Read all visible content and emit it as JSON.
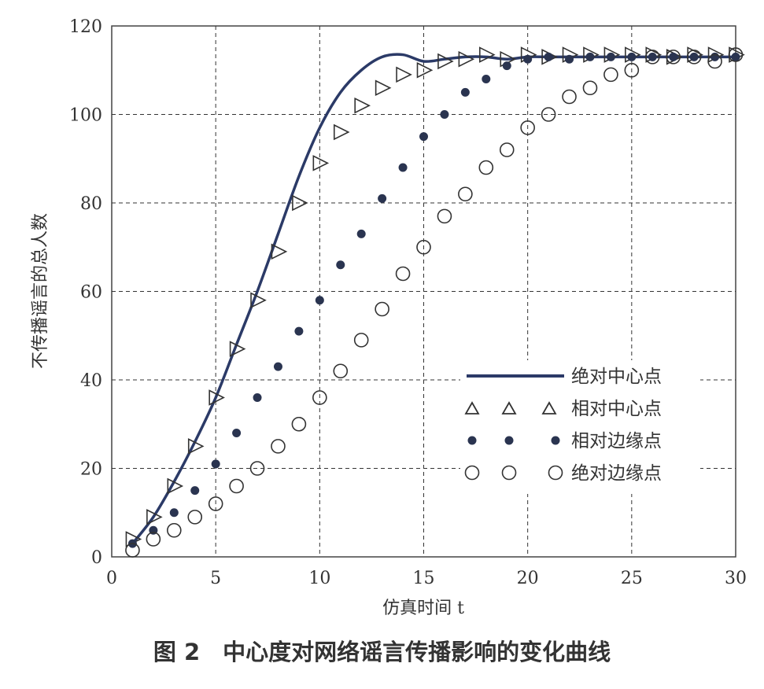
{
  "caption": "图 2　中心度对网络谣言传播影响的变化曲线",
  "chart_data": {
    "type": "line",
    "xlabel": "仿真时间 t",
    "ylabel": "不传播谣言的总人数",
    "xlim": [
      0,
      30
    ],
    "ylim": [
      0,
      120
    ],
    "xticks": [
      0,
      5,
      10,
      15,
      20,
      25,
      30
    ],
    "yticks": [
      0,
      20,
      40,
      60,
      80,
      100,
      120
    ],
    "grid": true,
    "legend_position": "lower-right",
    "series": [
      {
        "name": "绝对中心点",
        "style": "solid-line",
        "color": "#2b3a67",
        "x": [
          1,
          2,
          3,
          4,
          5,
          6,
          7,
          8,
          9,
          10,
          11,
          12,
          13,
          14,
          15,
          16,
          17,
          18,
          19,
          20,
          21,
          22,
          23,
          24,
          25,
          26,
          27,
          28,
          29,
          30
        ],
        "y": [
          3,
          9,
          17,
          26,
          36,
          48,
          60,
          73,
          86,
          97,
          105,
          110,
          113,
          113.5,
          112,
          112.5,
          113,
          113,
          112.5,
          113,
          113,
          113,
          113,
          113,
          113,
          113,
          113,
          113,
          113,
          113
        ]
      },
      {
        "name": "相对中心点",
        "style": "open-triangle",
        "color": "#333333",
        "x": [
          1,
          2,
          3,
          4,
          5,
          6,
          7,
          8,
          9,
          10,
          11,
          12,
          13,
          14,
          15,
          16,
          17,
          18,
          19,
          20,
          21,
          22,
          23,
          24,
          25,
          26,
          27,
          28,
          29,
          30
        ],
        "y": [
          4,
          9,
          16,
          25,
          36,
          47,
          58,
          69,
          80,
          89,
          96,
          102,
          106,
          109,
          110,
          112,
          112.5,
          113.5,
          112.5,
          113.5,
          113,
          113.5,
          113.5,
          113.5,
          113.5,
          113.5,
          113,
          113.5,
          113.5,
          113.5
        ]
      },
      {
        "name": "相对边缘点",
        "style": "filled-dot",
        "color": "#2a3450",
        "x": [
          1,
          2,
          3,
          4,
          5,
          6,
          7,
          8,
          9,
          10,
          11,
          12,
          13,
          14,
          15,
          16,
          17,
          18,
          19,
          20,
          21,
          22,
          23,
          24,
          25,
          26,
          27,
          28,
          29,
          30
        ],
        "y": [
          3,
          6,
          10,
          15,
          21,
          28,
          36,
          43,
          51,
          58,
          66,
          73,
          81,
          88,
          95,
          100,
          105,
          108,
          111,
          112.5,
          113,
          112.5,
          113,
          113,
          113,
          113,
          113,
          113,
          113,
          113
        ]
      },
      {
        "name": "绝对边缘点",
        "style": "open-circle",
        "color": "#333333",
        "x": [
          1,
          2,
          3,
          4,
          5,
          6,
          7,
          8,
          9,
          10,
          11,
          12,
          13,
          14,
          15,
          16,
          17,
          18,
          19,
          20,
          21,
          22,
          23,
          24,
          25,
          26,
          27,
          28,
          29,
          30
        ],
        "y": [
          1.5,
          4,
          6,
          9,
          12,
          16,
          20,
          25,
          30,
          36,
          42,
          49,
          56,
          64,
          70,
          77,
          82,
          88,
          92,
          97,
          100,
          104,
          106,
          109,
          110,
          113,
          113,
          113,
          112,
          113.5
        ]
      }
    ]
  }
}
